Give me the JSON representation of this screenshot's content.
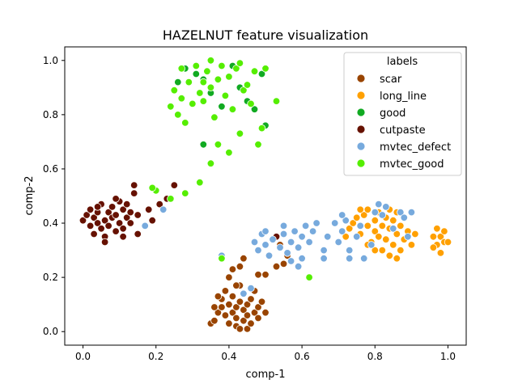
{
  "chart_data": {
    "type": "scatter",
    "title": "HAZELNUT feature visualization",
    "xlabel": "comp-1",
    "ylabel": "comp-2",
    "xlim": [
      -0.05,
      1.05
    ],
    "ylim": [
      -0.05,
      1.05
    ],
    "xticks": [
      "0.0",
      "0.2",
      "0.4",
      "0.6",
      "0.8",
      "1.0"
    ],
    "yticks": [
      "0.0",
      "0.2",
      "0.4",
      "0.6",
      "0.8",
      "1.0"
    ],
    "grid": false,
    "legend": {
      "title": "labels",
      "placement": "top-right"
    },
    "series": [
      {
        "name": "scar",
        "color": "#994400",
        "points": [
          [
            0.35,
            0.03
          ],
          [
            0.36,
            0.04
          ],
          [
            0.37,
            0.07
          ],
          [
            0.38,
            0.09
          ],
          [
            0.38,
            0.12
          ],
          [
            0.39,
            0.06
          ],
          [
            0.39,
            0.15
          ],
          [
            0.4,
            0.03
          ],
          [
            0.4,
            0.1
          ],
          [
            0.41,
            0.07
          ],
          [
            0.41,
            0.13
          ],
          [
            0.42,
            0.02
          ],
          [
            0.42,
            0.05
          ],
          [
            0.42,
            0.09
          ],
          [
            0.43,
            0.11
          ],
          [
            0.43,
            0.17
          ],
          [
            0.44,
            0.04
          ],
          [
            0.44,
            0.08
          ],
          [
            0.44,
            0.14
          ],
          [
            0.45,
            0.01
          ],
          [
            0.45,
            0.06
          ],
          [
            0.45,
            0.1
          ],
          [
            0.46,
            0.03
          ],
          [
            0.46,
            0.12
          ],
          [
            0.47,
            0.07
          ],
          [
            0.47,
            0.15
          ],
          [
            0.48,
            0.05
          ],
          [
            0.48,
            0.09
          ],
          [
            0.49,
            0.11
          ],
          [
            0.5,
            0.07
          ],
          [
            0.4,
            0.2
          ],
          [
            0.41,
            0.23
          ],
          [
            0.42,
            0.17
          ],
          [
            0.43,
            0.24
          ],
          [
            0.44,
            0.27
          ],
          [
            0.48,
            0.21
          ],
          [
            0.5,
            0.21
          ],
          [
            0.53,
            0.24
          ],
          [
            0.55,
            0.25
          ],
          [
            0.56,
            0.28
          ],
          [
            0.54,
            0.32
          ],
          [
            0.37,
            0.13
          ],
          [
            0.36,
            0.09
          ],
          [
            0.43,
            0.01
          ]
        ]
      },
      {
        "name": "long_line",
        "color": "#ffa000",
        "points": [
          [
            0.72,
            0.35
          ],
          [
            0.73,
            0.38
          ],
          [
            0.74,
            0.4
          ],
          [
            0.75,
            0.42
          ],
          [
            0.76,
            0.36
          ],
          [
            0.77,
            0.43
          ],
          [
            0.78,
            0.39
          ],
          [
            0.78,
            0.45
          ],
          [
            0.79,
            0.33
          ],
          [
            0.8,
            0.37
          ],
          [
            0.8,
            0.41
          ],
          [
            0.81,
            0.35
          ],
          [
            0.81,
            0.44
          ],
          [
            0.82,
            0.39
          ],
          [
            0.82,
            0.3
          ],
          [
            0.83,
            0.42
          ],
          [
            0.83,
            0.34
          ],
          [
            0.84,
            0.38
          ],
          [
            0.84,
            0.28
          ],
          [
            0.85,
            0.41
          ],
          [
            0.85,
            0.32
          ],
          [
            0.86,
            0.36
          ],
          [
            0.86,
            0.44
          ],
          [
            0.87,
            0.3
          ],
          [
            0.87,
            0.39
          ],
          [
            0.88,
            0.34
          ],
          [
            0.88,
            0.42
          ],
          [
            0.89,
            0.37
          ],
          [
            0.9,
            0.32
          ],
          [
            0.91,
            0.36
          ],
          [
            0.8,
            0.3
          ],
          [
            0.78,
            0.32
          ],
          [
            0.84,
            0.45
          ],
          [
            0.86,
            0.27
          ],
          [
            0.76,
            0.45
          ],
          [
            0.96,
            0.35
          ],
          [
            0.97,
            0.38
          ],
          [
            0.97,
            0.32
          ],
          [
            0.98,
            0.35
          ],
          [
            0.98,
            0.29
          ],
          [
            0.99,
            0.33
          ],
          [
            0.99,
            0.37
          ],
          [
            1.0,
            0.33
          ],
          [
            0.96,
            0.31
          ]
        ]
      },
      {
        "name": "good",
        "color": "#11aa22",
        "points": [
          [
            0.26,
            0.92
          ],
          [
            0.28,
            0.97
          ],
          [
            0.31,
            0.95
          ],
          [
            0.33,
            0.93
          ],
          [
            0.35,
            0.88
          ],
          [
            0.38,
            0.83
          ],
          [
            0.41,
            0.98
          ],
          [
            0.43,
            0.9
          ],
          [
            0.45,
            0.85
          ],
          [
            0.47,
            0.82
          ],
          [
            0.49,
            0.95
          ],
          [
            0.5,
            0.76
          ],
          [
            0.33,
            0.69
          ],
          [
            0.2,
            0.52
          ]
        ]
      },
      {
        "name": "cutpaste",
        "color": "#661100",
        "points": [
          [
            0.0,
            0.41
          ],
          [
            0.01,
            0.43
          ],
          [
            0.02,
            0.45
          ],
          [
            0.02,
            0.39
          ],
          [
            0.03,
            0.42
          ],
          [
            0.03,
            0.36
          ],
          [
            0.04,
            0.44
          ],
          [
            0.04,
            0.4
          ],
          [
            0.05,
            0.47
          ],
          [
            0.05,
            0.38
          ],
          [
            0.06,
            0.41
          ],
          [
            0.06,
            0.35
          ],
          [
            0.07,
            0.44
          ],
          [
            0.07,
            0.39
          ],
          [
            0.08,
            0.46
          ],
          [
            0.08,
            0.42
          ],
          [
            0.09,
            0.37
          ],
          [
            0.09,
            0.43
          ],
          [
            0.1,
            0.4
          ],
          [
            0.1,
            0.48
          ],
          [
            0.11,
            0.45
          ],
          [
            0.11,
            0.38
          ],
          [
            0.12,
            0.42
          ],
          [
            0.12,
            0.47
          ],
          [
            0.13,
            0.44
          ],
          [
            0.13,
            0.4
          ],
          [
            0.14,
            0.51
          ],
          [
            0.15,
            0.36
          ],
          [
            0.15,
            0.43
          ],
          [
            0.18,
            0.45
          ],
          [
            0.19,
            0.41
          ],
          [
            0.21,
            0.47
          ],
          [
            0.23,
            0.49
          ],
          [
            0.25,
            0.54
          ],
          [
            0.14,
            0.54
          ],
          [
            0.06,
            0.33
          ],
          [
            0.04,
            0.46
          ],
          [
            0.09,
            0.49
          ],
          [
            0.11,
            0.35
          ],
          [
            0.53,
            0.35
          ]
        ]
      },
      {
        "name": "mvtec_defect",
        "color": "#77aadd",
        "points": [
          [
            0.47,
            0.33
          ],
          [
            0.48,
            0.3
          ],
          [
            0.49,
            0.36
          ],
          [
            0.5,
            0.32
          ],
          [
            0.51,
            0.28
          ],
          [
            0.52,
            0.34
          ],
          [
            0.54,
            0.31
          ],
          [
            0.55,
            0.36
          ],
          [
            0.56,
            0.29
          ],
          [
            0.57,
            0.33
          ],
          [
            0.58,
            0.37
          ],
          [
            0.59,
            0.31
          ],
          [
            0.6,
            0.35
          ],
          [
            0.61,
            0.39
          ],
          [
            0.62,
            0.33
          ],
          [
            0.63,
            0.37
          ],
          [
            0.64,
            0.4
          ],
          [
            0.66,
            0.3
          ],
          [
            0.67,
            0.35
          ],
          [
            0.69,
            0.4
          ],
          [
            0.7,
            0.33
          ],
          [
            0.71,
            0.37
          ],
          [
            0.72,
            0.41
          ],
          [
            0.73,
            0.3
          ],
          [
            0.75,
            0.35
          ],
          [
            0.76,
            0.39
          ],
          [
            0.77,
            0.27
          ],
          [
            0.79,
            0.32
          ],
          [
            0.8,
            0.44
          ],
          [
            0.81,
            0.47
          ],
          [
            0.82,
            0.43
          ],
          [
            0.83,
            0.46
          ],
          [
            0.85,
            0.38
          ],
          [
            0.87,
            0.44
          ],
          [
            0.88,
            0.42
          ],
          [
            0.89,
            0.35
          ],
          [
            0.9,
            0.44
          ],
          [
            0.55,
            0.39
          ],
          [
            0.57,
            0.26
          ],
          [
            0.59,
            0.24
          ],
          [
            0.6,
            0.27
          ],
          [
            0.66,
            0.27
          ],
          [
            0.71,
            0.43
          ],
          [
            0.73,
            0.27
          ],
          [
            0.5,
            0.37
          ],
          [
            0.44,
            0.14
          ],
          [
            0.46,
            0.16
          ],
          [
            0.17,
            0.39
          ],
          [
            0.22,
            0.45
          ],
          [
            0.38,
            0.28
          ]
        ]
      },
      {
        "name": "mvtec_good",
        "color": "#55ee00",
        "points": [
          [
            0.24,
            0.83
          ],
          [
            0.25,
            0.89
          ],
          [
            0.26,
            0.8
          ],
          [
            0.27,
            0.86
          ],
          [
            0.28,
            0.77
          ],
          [
            0.29,
            0.92
          ],
          [
            0.3,
            0.84
          ],
          [
            0.31,
            0.98
          ],
          [
            0.32,
            0.88
          ],
          [
            0.33,
            0.85
          ],
          [
            0.34,
            0.96
          ],
          [
            0.35,
            0.9
          ],
          [
            0.35,
            1.0
          ],
          [
            0.36,
            0.79
          ],
          [
            0.37,
            0.93
          ],
          [
            0.38,
            0.98
          ],
          [
            0.39,
            0.87
          ],
          [
            0.4,
            0.94
          ],
          [
            0.41,
            0.82
          ],
          [
            0.42,
            0.97
          ],
          [
            0.43,
            0.73
          ],
          [
            0.44,
            0.89
          ],
          [
            0.45,
            0.91
          ],
          [
            0.46,
            0.84
          ],
          [
            0.47,
            0.96
          ],
          [
            0.48,
            0.69
          ],
          [
            0.49,
            0.75
          ],
          [
            0.5,
            0.97
          ],
          [
            0.53,
            0.85
          ],
          [
            0.4,
            0.66
          ],
          [
            0.37,
            0.69
          ],
          [
            0.35,
            0.62
          ],
          [
            0.32,
            0.55
          ],
          [
            0.28,
            0.51
          ],
          [
            0.24,
            0.49
          ],
          [
            0.2,
            0.52
          ],
          [
            0.19,
            0.53
          ],
          [
            0.62,
            0.2
          ],
          [
            0.38,
            0.27
          ],
          [
            0.43,
            0.99
          ],
          [
            0.33,
            0.92
          ],
          [
            0.27,
            0.97
          ]
        ]
      }
    ]
  }
}
